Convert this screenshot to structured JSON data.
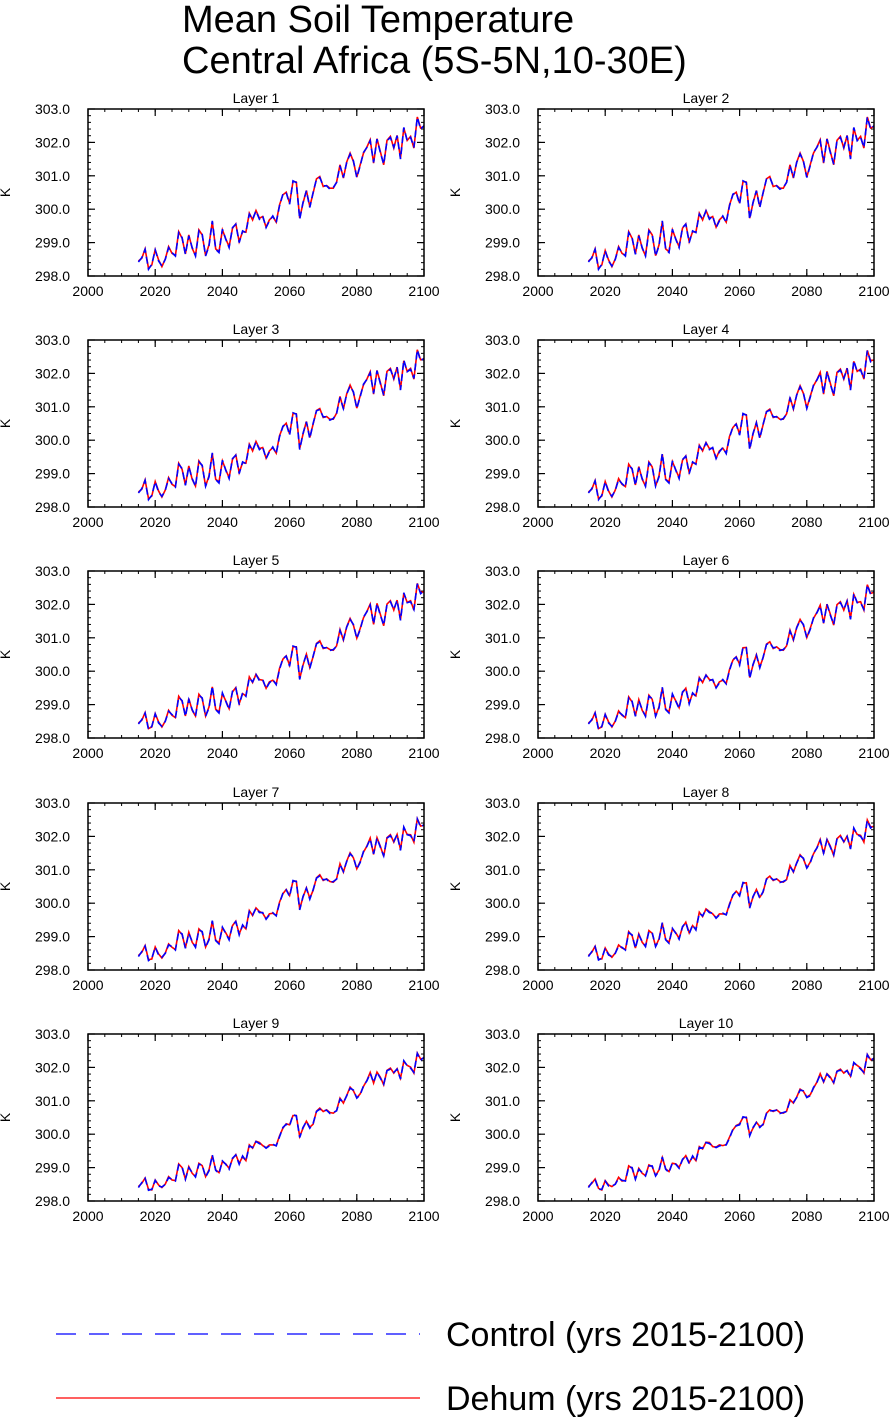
{
  "title": {
    "line1": "Mean Soil Temperature",
    "line2": "Central Africa (5S-5N,10-30E)"
  },
  "chart_data": {
    "type": "line",
    "ylabel": "K",
    "xlim": [
      2000,
      2100
    ],
    "ylim": [
      298.0,
      303.0
    ],
    "x_ticks": [
      2000,
      2020,
      2040,
      2060,
      2080,
      2100
    ],
    "y_ticks": [
      "298.0",
      "299.0",
      "300.0",
      "301.0",
      "302.0",
      "303.0"
    ],
    "x": [
      2015,
      2016,
      2017,
      2018,
      2019,
      2020,
      2021,
      2022,
      2023,
      2024,
      2025,
      2026,
      2027,
      2028,
      2029,
      2030,
      2031,
      2032,
      2033,
      2034,
      2035,
      2036,
      2037,
      2038,
      2039,
      2040,
      2041,
      2042,
      2043,
      2044,
      2045,
      2046,
      2047,
      2048,
      2049,
      2050,
      2051,
      2052,
      2053,
      2054,
      2055,
      2056,
      2057,
      2058,
      2059,
      2060,
      2061,
      2062,
      2063,
      2064,
      2065,
      2066,
      2067,
      2068,
      2069,
      2070,
      2071,
      2072,
      2073,
      2074,
      2075,
      2076,
      2077,
      2078,
      2079,
      2080,
      2081,
      2082,
      2083,
      2084,
      2085,
      2086,
      2087,
      2088,
      2089,
      2090,
      2091,
      2092,
      2093,
      2094,
      2095,
      2096,
      2097,
      2098,
      2099,
      2100
    ],
    "series_meta": [
      {
        "name": "Control (yrs 2015-2100)",
        "color": "#0000ff",
        "dash": "dashed"
      },
      {
        "name": "Dehum (yrs 2015-2100)",
        "color": "#ff0000",
        "dash": "solid"
      }
    ],
    "panels": [
      {
        "title": "Layer 1",
        "control": [
          298.42,
          298.55,
          298.8,
          298.2,
          298.35,
          298.78,
          298.45,
          298.3,
          298.5,
          298.85,
          298.7,
          298.6,
          299.3,
          299.15,
          298.65,
          299.2,
          298.85,
          298.6,
          299.35,
          299.25,
          298.6,
          298.9,
          299.65,
          298.8,
          298.7,
          299.4,
          299.1,
          298.85,
          299.45,
          299.55,
          299.0,
          299.35,
          299.3,
          299.85,
          299.7,
          299.95,
          299.7,
          299.8,
          299.45,
          299.65,
          299.8,
          299.6,
          300.1,
          300.45,
          300.5,
          300.15,
          300.85,
          300.8,
          299.7,
          300.2,
          300.55,
          300.05,
          300.5,
          300.9,
          300.95,
          300.7,
          300.7,
          300.6,
          300.65,
          300.8,
          301.3,
          300.95,
          301.4,
          301.65,
          301.45,
          300.95,
          301.3,
          301.7,
          301.85,
          302.05,
          301.4,
          302.1,
          301.7,
          301.35,
          302.05,
          302.15,
          301.85,
          302.2,
          301.5,
          302.45,
          302.05,
          302.15,
          301.85,
          302.75,
          302.4,
          302.5
        ]
      },
      {
        "title": "Layer 2",
        "control": [
          298.42,
          298.55,
          298.8,
          298.2,
          298.35,
          298.75,
          298.45,
          298.3,
          298.5,
          298.85,
          298.7,
          298.6,
          299.3,
          299.15,
          298.65,
          299.2,
          298.85,
          298.6,
          299.35,
          299.25,
          298.6,
          298.9,
          299.65,
          298.8,
          298.7,
          299.4,
          299.1,
          298.85,
          299.45,
          299.55,
          299.0,
          299.35,
          299.3,
          299.85,
          299.7,
          299.95,
          299.7,
          299.8,
          299.45,
          299.65,
          299.8,
          299.6,
          300.1,
          300.45,
          300.5,
          300.15,
          300.85,
          300.8,
          299.7,
          300.2,
          300.55,
          300.05,
          300.5,
          300.9,
          300.95,
          300.7,
          300.7,
          300.6,
          300.65,
          300.8,
          301.3,
          300.95,
          301.4,
          301.65,
          301.45,
          300.95,
          301.3,
          301.7,
          301.85,
          302.05,
          301.4,
          302.1,
          301.7,
          301.35,
          302.05,
          302.15,
          301.85,
          302.2,
          301.5,
          302.45,
          302.05,
          302.15,
          301.85,
          302.75,
          302.4,
          302.5
        ]
      },
      {
        "title": "Layer 3",
        "control": [
          298.42,
          298.55,
          298.8,
          298.22,
          298.35,
          298.75,
          298.45,
          298.32,
          298.5,
          298.85,
          298.7,
          298.6,
          299.28,
          299.15,
          298.65,
          299.2,
          298.85,
          298.62,
          299.35,
          299.25,
          298.62,
          298.9,
          299.62,
          298.82,
          298.72,
          299.4,
          299.1,
          298.85,
          299.45,
          299.55,
          299.0,
          299.35,
          299.3,
          299.85,
          299.7,
          299.95,
          299.72,
          299.8,
          299.45,
          299.65,
          299.8,
          299.6,
          300.1,
          300.42,
          300.5,
          300.15,
          300.82,
          300.78,
          299.72,
          300.2,
          300.55,
          300.05,
          300.5,
          300.88,
          300.92,
          300.7,
          300.7,
          300.6,
          300.65,
          300.8,
          301.28,
          300.95,
          301.38,
          301.62,
          301.45,
          300.95,
          301.3,
          301.68,
          301.82,
          302.02,
          301.4,
          302.08,
          301.7,
          301.35,
          302.05,
          302.12,
          301.85,
          302.18,
          301.5,
          302.4,
          302.05,
          302.12,
          301.85,
          302.7,
          302.38,
          302.45
        ]
      },
      {
        "title": "Layer 4",
        "control": [
          298.42,
          298.55,
          298.78,
          298.22,
          298.35,
          298.75,
          298.45,
          298.32,
          298.5,
          298.82,
          298.7,
          298.6,
          299.25,
          299.15,
          298.65,
          299.18,
          298.85,
          298.62,
          299.32,
          299.22,
          298.62,
          298.9,
          299.6,
          298.82,
          298.72,
          299.38,
          299.1,
          298.85,
          299.42,
          299.52,
          299.0,
          299.35,
          299.28,
          299.82,
          299.7,
          299.92,
          299.72,
          299.78,
          299.45,
          299.65,
          299.78,
          299.6,
          300.08,
          300.4,
          300.48,
          300.15,
          300.8,
          300.75,
          299.72,
          300.2,
          300.52,
          300.05,
          300.48,
          300.85,
          300.9,
          300.7,
          300.7,
          300.6,
          300.65,
          300.78,
          301.25,
          300.95,
          301.35,
          301.6,
          301.42,
          300.95,
          301.28,
          301.65,
          301.8,
          302.0,
          301.4,
          302.05,
          301.68,
          301.35,
          302.02,
          302.1,
          301.85,
          302.15,
          301.5,
          302.38,
          302.05,
          302.1,
          301.85,
          302.68,
          302.35,
          302.42
        ]
      },
      {
        "title": "Layer 5",
        "control": [
          298.42,
          298.55,
          298.75,
          298.25,
          298.35,
          298.72,
          298.45,
          298.35,
          298.5,
          298.8,
          298.7,
          298.6,
          299.22,
          299.12,
          298.65,
          299.15,
          298.85,
          298.65,
          299.28,
          299.2,
          298.65,
          298.9,
          299.55,
          298.85,
          298.75,
          299.35,
          299.1,
          298.85,
          299.4,
          299.5,
          299.0,
          299.35,
          299.25,
          299.8,
          299.68,
          299.9,
          299.72,
          299.75,
          299.48,
          299.65,
          299.75,
          299.6,
          300.05,
          300.38,
          300.45,
          300.15,
          300.75,
          300.72,
          299.75,
          300.2,
          300.5,
          300.08,
          300.45,
          300.82,
          300.88,
          300.7,
          300.7,
          300.62,
          300.65,
          300.75,
          301.22,
          300.95,
          301.32,
          301.55,
          301.4,
          300.98,
          301.25,
          301.62,
          301.78,
          301.98,
          301.42,
          302.02,
          301.68,
          301.38,
          302.0,
          302.08,
          301.85,
          302.12,
          301.52,
          302.35,
          302.05,
          302.08,
          301.85,
          302.62,
          302.32,
          302.4
        ]
      },
      {
        "title": "Layer 6",
        "control": [
          298.42,
          298.55,
          298.75,
          298.25,
          298.35,
          298.7,
          298.45,
          298.35,
          298.5,
          298.78,
          298.7,
          298.6,
          299.2,
          299.1,
          298.65,
          299.12,
          298.85,
          298.65,
          299.25,
          299.18,
          298.65,
          298.9,
          299.52,
          298.85,
          298.75,
          299.32,
          299.1,
          298.88,
          299.38,
          299.48,
          299.02,
          299.35,
          299.25,
          299.78,
          299.68,
          299.88,
          299.72,
          299.75,
          299.5,
          299.65,
          299.75,
          299.62,
          300.02,
          300.35,
          300.42,
          300.18,
          300.72,
          300.7,
          299.78,
          300.2,
          300.48,
          300.1,
          300.42,
          300.8,
          300.85,
          300.7,
          300.72,
          300.62,
          300.65,
          300.75,
          301.2,
          300.95,
          301.3,
          301.52,
          301.4,
          301.0,
          301.25,
          301.6,
          301.75,
          301.95,
          301.45,
          302.0,
          301.68,
          301.4,
          301.98,
          302.05,
          301.85,
          302.1,
          301.55,
          302.32,
          302.05,
          302.05,
          301.85,
          302.58,
          302.3,
          302.38
        ]
      },
      {
        "title": "Layer 7",
        "control": [
          298.4,
          298.55,
          298.72,
          298.28,
          298.35,
          298.68,
          298.45,
          298.38,
          298.5,
          298.75,
          298.7,
          298.6,
          299.15,
          299.08,
          298.65,
          299.1,
          298.85,
          298.68,
          299.2,
          299.15,
          298.68,
          298.9,
          299.48,
          298.88,
          298.78,
          299.28,
          299.1,
          298.9,
          299.35,
          299.45,
          299.05,
          299.35,
          299.22,
          299.75,
          299.65,
          299.85,
          299.72,
          299.72,
          299.52,
          299.65,
          299.72,
          299.62,
          300.0,
          300.3,
          300.4,
          300.2,
          300.68,
          300.65,
          299.8,
          300.2,
          300.45,
          300.12,
          300.4,
          300.75,
          300.82,
          300.7,
          300.72,
          300.62,
          300.65,
          300.72,
          301.15,
          300.95,
          301.25,
          301.48,
          301.38,
          301.02,
          301.22,
          301.55,
          301.7,
          301.92,
          301.48,
          301.95,
          301.68,
          301.42,
          301.95,
          302.02,
          301.85,
          302.05,
          301.58,
          302.28,
          302.05,
          302.02,
          301.85,
          302.52,
          302.28,
          302.35
        ]
      },
      {
        "title": "Layer 8",
        "control": [
          298.4,
          298.55,
          298.7,
          298.3,
          298.35,
          298.65,
          298.45,
          298.4,
          298.5,
          298.72,
          298.68,
          298.6,
          299.12,
          299.05,
          298.65,
          299.05,
          298.85,
          298.7,
          299.15,
          299.12,
          298.7,
          298.9,
          299.42,
          298.9,
          298.8,
          299.25,
          299.1,
          298.92,
          299.3,
          299.42,
          299.08,
          299.35,
          299.2,
          299.7,
          299.62,
          299.82,
          299.72,
          299.7,
          299.55,
          299.65,
          299.7,
          299.65,
          299.95,
          300.25,
          300.35,
          300.22,
          300.62,
          300.6,
          299.85,
          300.2,
          300.4,
          300.15,
          300.35,
          300.72,
          300.78,
          300.7,
          300.72,
          300.62,
          300.65,
          300.7,
          301.1,
          300.95,
          301.2,
          301.42,
          301.35,
          301.05,
          301.2,
          301.5,
          301.65,
          301.88,
          301.5,
          301.9,
          301.68,
          301.45,
          301.92,
          302.0,
          301.85,
          302.0,
          301.62,
          302.25,
          302.05,
          302.0,
          301.85,
          302.48,
          302.25,
          302.32
        ]
      },
      {
        "title": "Layer 9",
        "control": [
          298.4,
          298.55,
          298.68,
          298.32,
          298.35,
          298.62,
          298.45,
          298.42,
          298.5,
          298.7,
          298.65,
          298.6,
          299.08,
          299.02,
          298.65,
          299.0,
          298.85,
          298.72,
          299.1,
          299.08,
          298.72,
          298.9,
          299.38,
          298.92,
          298.82,
          299.2,
          299.1,
          298.95,
          299.28,
          299.38,
          299.1,
          299.35,
          299.2,
          299.65,
          299.6,
          299.78,
          299.72,
          299.68,
          299.58,
          299.65,
          299.7,
          299.65,
          299.92,
          300.2,
          300.3,
          300.25,
          300.58,
          300.55,
          299.9,
          300.2,
          300.38,
          300.18,
          300.32,
          300.68,
          300.75,
          300.7,
          300.72,
          300.62,
          300.65,
          300.7,
          301.05,
          300.95,
          301.15,
          301.38,
          301.32,
          301.08,
          301.18,
          301.45,
          301.6,
          301.82,
          301.55,
          301.85,
          301.68,
          301.5,
          301.9,
          301.95,
          301.85,
          301.95,
          301.65,
          302.2,
          302.05,
          301.98,
          301.85,
          302.42,
          302.22,
          302.3
        ]
      },
      {
        "title": "Layer 10",
        "control": [
          298.4,
          298.55,
          298.65,
          298.35,
          298.35,
          298.6,
          298.45,
          298.45,
          298.5,
          298.68,
          298.62,
          298.6,
          299.02,
          299.0,
          298.65,
          298.95,
          298.85,
          298.75,
          299.05,
          299.05,
          298.75,
          298.9,
          299.32,
          298.95,
          298.85,
          299.15,
          299.1,
          298.98,
          299.25,
          299.35,
          299.12,
          299.35,
          299.2,
          299.6,
          299.58,
          299.75,
          299.72,
          299.65,
          299.6,
          299.65,
          299.68,
          299.68,
          299.88,
          300.15,
          300.25,
          300.28,
          300.52,
          300.5,
          299.95,
          300.2,
          300.35,
          300.2,
          300.3,
          300.62,
          300.7,
          300.7,
          300.72,
          300.62,
          300.65,
          300.68,
          301.0,
          300.95,
          301.1,
          301.32,
          301.3,
          301.1,
          301.15,
          301.4,
          301.55,
          301.78,
          301.58,
          301.8,
          301.68,
          301.55,
          301.88,
          301.92,
          301.85,
          301.9,
          301.7,
          302.15,
          302.05,
          301.95,
          301.85,
          302.38,
          302.2,
          302.28
        ]
      }
    ]
  }
}
